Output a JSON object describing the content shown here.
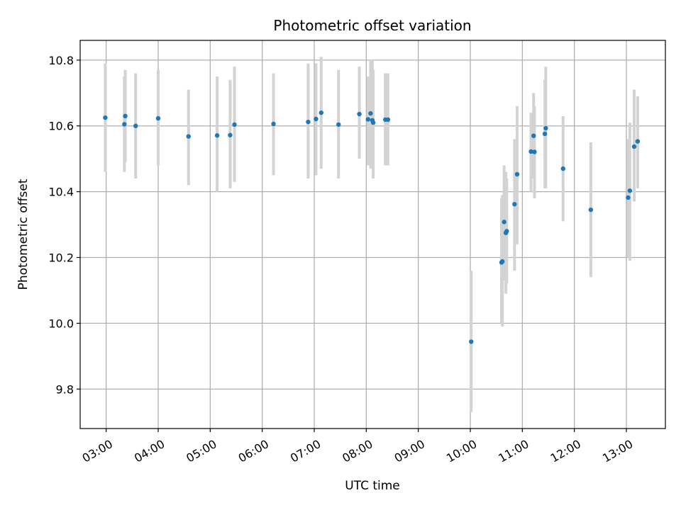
{
  "chart_data": {
    "type": "scatter",
    "title": "Photometric offset variation",
    "xlabel": "UTC time",
    "ylabel": "Photometric offset",
    "xlim": [
      "02:30",
      "13:45"
    ],
    "ylim": [
      9.68,
      10.86
    ],
    "grid": true,
    "x_ticks": [
      "03:00",
      "04:00",
      "05:00",
      "06:00",
      "07:00",
      "08:00",
      "09:00",
      "10:00",
      "11:00",
      "12:00",
      "13:00"
    ],
    "y_ticks": [
      "9.8",
      "10.0",
      "10.2",
      "10.4",
      "10.6",
      "10.8"
    ],
    "colors": {
      "point": "#1f77b4",
      "errorbar": "#d3d3d3",
      "grid": "#b0b0b0"
    },
    "series": [
      {
        "points": [
          {
            "x": "02:59",
            "y": 10.625,
            "lo": 10.46,
            "hi": 10.79
          },
          {
            "x": "03:21",
            "y": 10.605,
            "lo": 10.46,
            "hi": 10.75
          },
          {
            "x": "03:22",
            "y": 10.63,
            "lo": 10.49,
            "hi": 10.77
          },
          {
            "x": "03:34",
            "y": 10.6,
            "lo": 10.44,
            "hi": 10.76
          },
          {
            "x": "04:00",
            "y": 10.623,
            "lo": 10.48,
            "hi": 10.77
          },
          {
            "x": "04:35",
            "y": 10.568,
            "lo": 10.42,
            "hi": 10.71
          },
          {
            "x": "05:08",
            "y": 10.571,
            "lo": 10.4,
            "hi": 10.75
          },
          {
            "x": "05:23",
            "y": 10.572,
            "lo": 10.41,
            "hi": 10.74
          },
          {
            "x": "05:28",
            "y": 10.604,
            "lo": 10.43,
            "hi": 10.78
          },
          {
            "x": "06:13",
            "y": 10.606,
            "lo": 10.45,
            "hi": 10.76
          },
          {
            "x": "06:53",
            "y": 10.612,
            "lo": 10.44,
            "hi": 10.79
          },
          {
            "x": "07:02",
            "y": 10.621,
            "lo": 10.45,
            "hi": 10.79
          },
          {
            "x": "07:08",
            "y": 10.64,
            "lo": 10.47,
            "hi": 10.81
          },
          {
            "x": "07:28",
            "y": 10.604,
            "lo": 10.44,
            "hi": 10.77
          },
          {
            "x": "07:52",
            "y": 10.636,
            "lo": 10.5,
            "hi": 10.78
          },
          {
            "x": "08:02",
            "y": 10.62,
            "lo": 10.48,
            "hi": 10.75
          },
          {
            "x": "08:05",
            "y": 10.638,
            "lo": 10.47,
            "hi": 10.8
          },
          {
            "x": "08:07",
            "y": 10.617,
            "lo": 10.47,
            "hi": 10.8
          },
          {
            "x": "08:08",
            "y": 10.61,
            "lo": 10.44,
            "hi": 10.77
          },
          {
            "x": "08:22",
            "y": 10.619,
            "lo": 10.48,
            "hi": 10.76
          },
          {
            "x": "08:25",
            "y": 10.619,
            "lo": 10.48,
            "hi": 10.76
          },
          {
            "x": "10:01",
            "y": 9.944,
            "lo": 9.73,
            "hi": 10.16
          },
          {
            "x": "10:36",
            "y": 10.185,
            "lo": 10.0,
            "hi": 10.38
          },
          {
            "x": "10:37",
            "y": 10.188,
            "lo": 9.99,
            "hi": 10.39
          },
          {
            "x": "10:39",
            "y": 10.308,
            "lo": 10.13,
            "hi": 10.48
          },
          {
            "x": "10:41",
            "y": 10.275,
            "lo": 10.09,
            "hi": 10.46
          },
          {
            "x": "10:42",
            "y": 10.28,
            "lo": 10.12,
            "hi": 10.44
          },
          {
            "x": "10:51",
            "y": 10.362,
            "lo": 10.16,
            "hi": 10.56
          },
          {
            "x": "10:54",
            "y": 10.453,
            "lo": 10.24,
            "hi": 10.66
          },
          {
            "x": "11:10",
            "y": 10.522,
            "lo": 10.4,
            "hi": 10.64
          },
          {
            "x": "11:13",
            "y": 10.57,
            "lo": 10.44,
            "hi": 10.7
          },
          {
            "x": "11:14",
            "y": 10.521,
            "lo": 10.38,
            "hi": 10.66
          },
          {
            "x": "11:26",
            "y": 10.576,
            "lo": 10.41,
            "hi": 10.74
          },
          {
            "x": "11:27",
            "y": 10.593,
            "lo": 10.41,
            "hi": 10.78
          },
          {
            "x": "11:47",
            "y": 10.47,
            "lo": 10.31,
            "hi": 10.63
          },
          {
            "x": "12:19",
            "y": 10.345,
            "lo": 10.14,
            "hi": 10.55
          },
          {
            "x": "13:02",
            "y": 10.382,
            "lo": 10.2,
            "hi": 10.56
          },
          {
            "x": "13:04",
            "y": 10.403,
            "lo": 10.19,
            "hi": 10.61
          },
          {
            "x": "13:09",
            "y": 10.537,
            "lo": 10.37,
            "hi": 10.71
          },
          {
            "x": "13:13",
            "y": 10.553,
            "lo": 10.41,
            "hi": 10.69
          }
        ]
      }
    ]
  }
}
